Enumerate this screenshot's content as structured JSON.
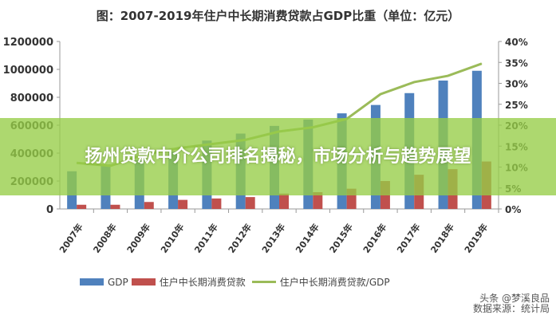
{
  "chart_data": {
    "type": "bar",
    "title": "图：2007-2019年住户中长期消费贷款占GDP比重（单位：亿元）",
    "categories": [
      "2007年",
      "2008年",
      "2009年",
      "2010年",
      "2011年",
      "2012年",
      "2013年",
      "2014年",
      "2015年",
      "2016年",
      "2017年",
      "2018年",
      "2019年"
    ],
    "series": [
      {
        "name": "GDP",
        "type": "bar",
        "axis": "left",
        "color": "#4f81bd",
        "values": [
          270000,
          320000,
          350000,
          410000,
          490000,
          540000,
          595000,
          640000,
          685000,
          745000,
          830000,
          920000,
          990000
        ]
      },
      {
        "name": "住户中长期消费贷款",
        "type": "bar",
        "axis": "left",
        "color": "#c0504d",
        "values": [
          30000,
          30000,
          50000,
          65000,
          75000,
          85000,
          110000,
          120000,
          145000,
          200000,
          245000,
          285000,
          340000
        ]
      },
      {
        "name": "住户中长期消费贷款/GDP",
        "type": "line",
        "axis": "right",
        "color": "#9bbb59",
        "values": [
          11,
          10.3,
          13,
          14.5,
          15.5,
          16.5,
          18.5,
          19.5,
          21.5,
          27.4,
          30.3,
          31.8,
          34.7
        ]
      }
    ],
    "ylim": [
      0,
      1200000
    ],
    "yticks": [
      "0",
      "200000",
      "400000",
      "600000",
      "800000",
      "1000000",
      "1200000"
    ],
    "y2lim": [
      0,
      40
    ],
    "y2ticks": [
      "0%",
      "5%",
      "10%",
      "15%",
      "20%",
      "25%",
      "30%",
      "35%",
      "40%"
    ],
    "legend": "bottom",
    "grid": false
  },
  "banner": {
    "text": "扬州贷款中介公司排名揭秘，市场分析与趋势展望",
    "color": "#96cd46"
  },
  "watermark": {
    "line1": "头条 @梦溪良品",
    "line2": "数据来源：统计局"
  }
}
